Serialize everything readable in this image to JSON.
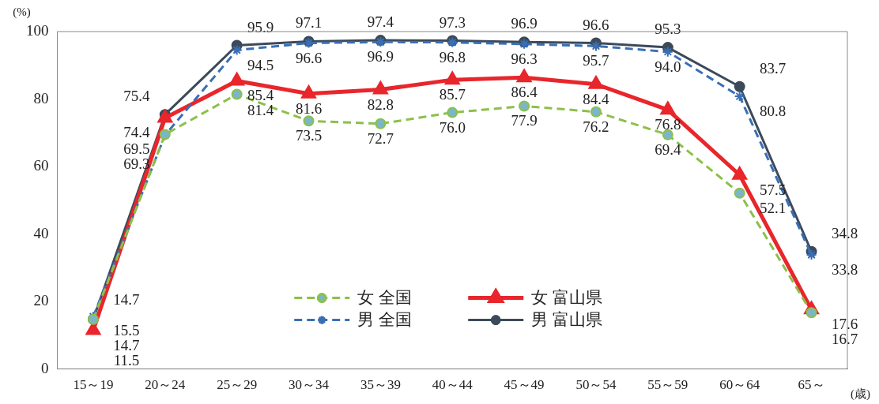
{
  "chart_data": {
    "type": "line",
    "ylabel": "(%)",
    "xlabel": "(歳)",
    "categories": [
      "15～19",
      "20～24",
      "25～29",
      "30～34",
      "35～39",
      "40～44",
      "45～49",
      "50～54",
      "55～59",
      "60～64",
      "65～"
    ],
    "ylim": [
      0,
      100
    ],
    "yticks": [
      0,
      20,
      40,
      60,
      80,
      100
    ],
    "grid": false,
    "legend": "bottom",
    "data_labels": true,
    "series": [
      {
        "name": "女 全国",
        "color": "#8cc04a",
        "marker": "circle",
        "line_style": "dashed",
        "values": [
          14.7,
          69.5,
          81.4,
          73.5,
          72.7,
          76.0,
          77.9,
          76.2,
          69.4,
          52.1,
          16.7
        ],
        "value_labels": [
          "14.7",
          "69.5",
          "81.4",
          "73.5",
          "72.7",
          "76.0",
          "77.9",
          "76.2",
          "69.4",
          "52.1",
          "16.7"
        ]
      },
      {
        "name": "男 全国",
        "color": "#3a6fb5",
        "marker": "cross",
        "line_style": "dashed",
        "values": [
          15.5,
          69.3,
          94.5,
          96.6,
          96.9,
          96.8,
          96.3,
          95.7,
          94.0,
          80.8,
          33.8
        ],
        "value_labels": [
          "15.5",
          "69.3",
          "94.5",
          "96.6",
          "96.9",
          "96.8",
          "96.3",
          "95.7",
          "94.0",
          "80.8",
          "33.8"
        ]
      },
      {
        "name": "女 富山県",
        "color": "#e8262b",
        "marker": "triangle",
        "line_style": "solid",
        "values": [
          11.5,
          74.4,
          85.4,
          81.6,
          82.8,
          85.7,
          86.4,
          84.4,
          76.8,
          57.5,
          17.6
        ]
      },
      {
        "name": "男 富山県",
        "color": "#3c4a5a",
        "marker": "circle",
        "line_style": "solid",
        "values": [
          14.7,
          75.4,
          95.9,
          97.1,
          97.4,
          97.3,
          96.9,
          96.6,
          95.3,
          83.7,
          34.8
        ]
      }
    ]
  }
}
